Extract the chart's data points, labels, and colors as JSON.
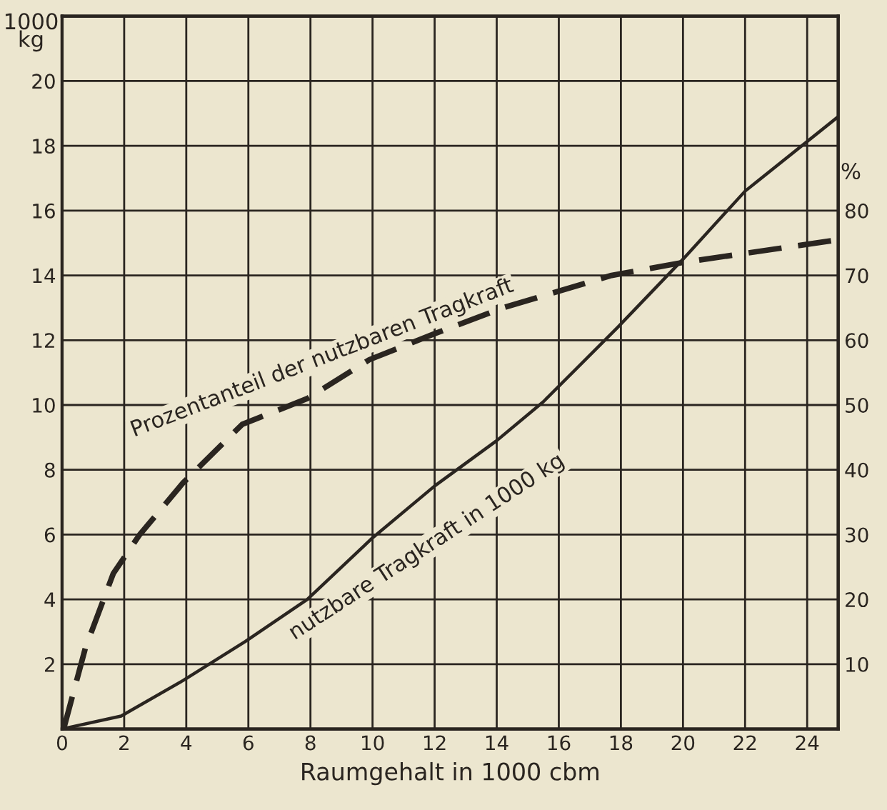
{
  "chart_data": {
    "type": "line",
    "xlabel": "Raumgehalt in 1000 cbm",
    "ylabel": "1000\nkg",
    "y2label": "%",
    "xlim": [
      0,
      25
    ],
    "xticks": [
      0,
      2,
      4,
      6,
      8,
      10,
      12,
      14,
      16,
      18,
      20,
      22,
      24
    ],
    "ylim": [
      0,
      22
    ],
    "yticks": [
      2,
      4,
      6,
      8,
      10,
      12,
      14,
      16,
      18,
      20
    ],
    "y2lim": [
      0,
      110
    ],
    "y2ticks": [
      10,
      20,
      30,
      40,
      50,
      60,
      70,
      80
    ],
    "grid": true,
    "legend": false,
    "series": [
      {
        "color": "#2a2520",
        "line_style": "solid",
        "x": [
          0,
          1.9,
          3.9,
          5.9,
          7.9,
          10,
          12,
          14,
          15.5,
          17.9,
          20,
          22,
          25
        ],
        "values": [
          0,
          0.4,
          1.5,
          2.7,
          4.0,
          5.9,
          7.5,
          8.9,
          10.1,
          12.4,
          14.5,
          16.6,
          18.9
        ]
      },
      {
        "color": "#2a2520",
        "line_style": "dashed",
        "axis": "y2",
        "x": [
          0.05,
          0.75,
          1.65,
          2.5,
          3.9,
          5.8,
          7.9,
          9.9,
          12,
          14.2,
          17.7,
          20,
          25
        ],
        "values": [
          0,
          12.5,
          24,
          30,
          38,
          47,
          51,
          57,
          61,
          65,
          70,
          72,
          75.5
        ]
      }
    ],
    "annotations": [
      "Prozentanteil der nutzbaren Tragkraft",
      "nutzbare Tragkraft in 1000 kg"
    ]
  }
}
